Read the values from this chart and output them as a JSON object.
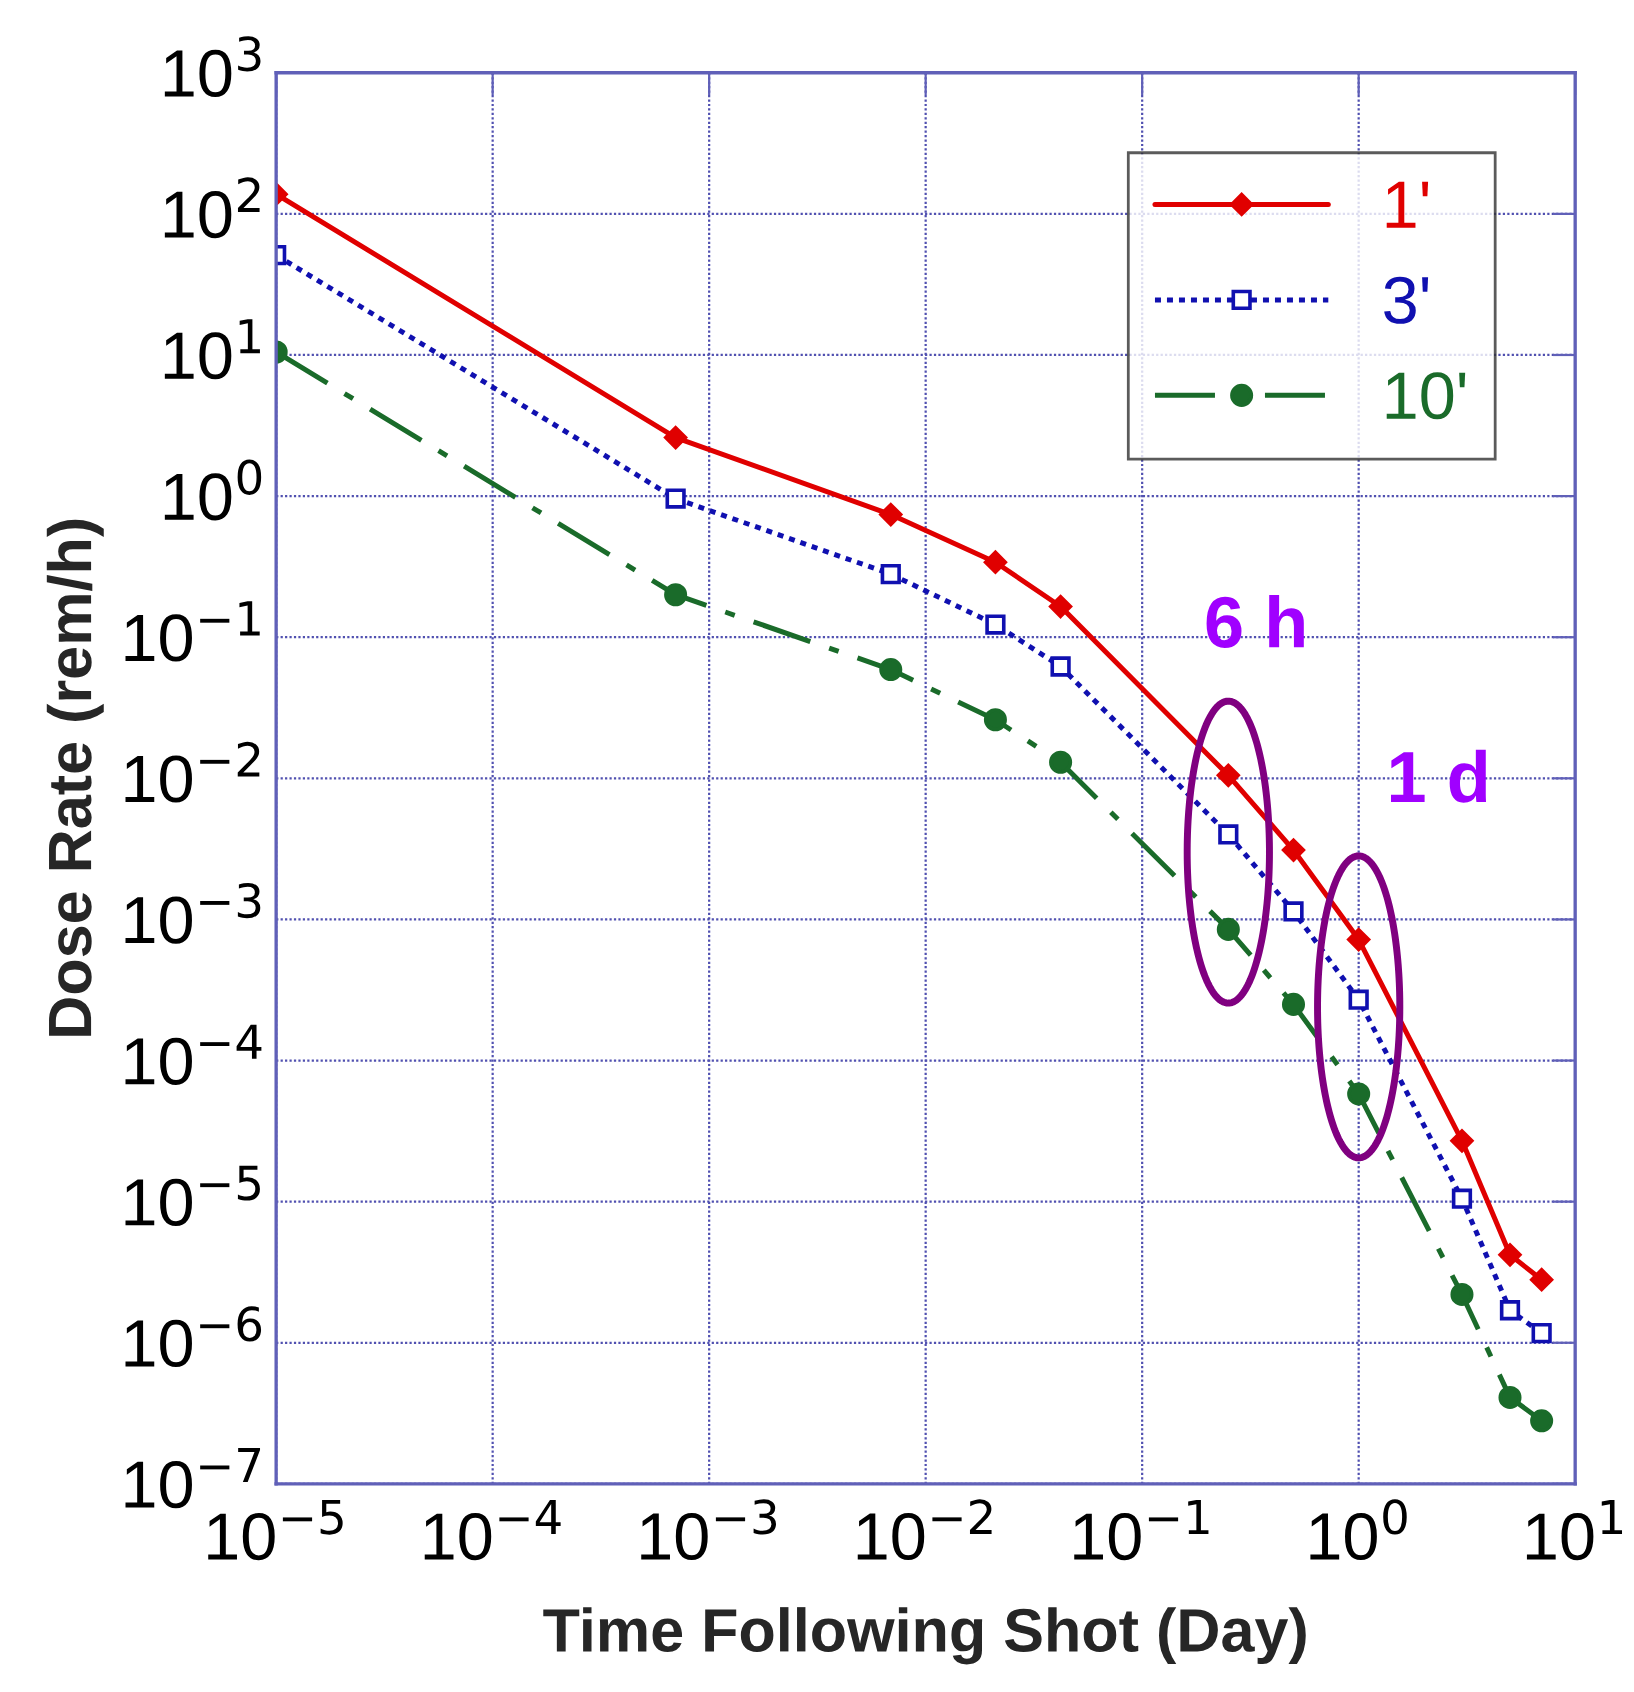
{
  "chart_data": {
    "type": "line",
    "xlabel": "Time Following Shot (Day)",
    "ylabel": "Dose Rate (rem/h)",
    "log": "xy",
    "grid": true,
    "legend": "top right",
    "x": [
      1e-05,
      0.0007,
      0.0069,
      0.021,
      0.042,
      0.25,
      0.5,
      1,
      3,
      5,
      7
    ],
    "xlim": [
      1e-05,
      10
    ],
    "ylim": [
      1e-07,
      1000
    ],
    "xticks": [
      {
        "value": 1e-05,
        "label": "10$^{−5}$"
      },
      {
        "value": 0.0001,
        "label": "10$^{−4}$"
      },
      {
        "value": 0.001,
        "label": "10$^{−3}$"
      },
      {
        "value": 0.01,
        "label": "10$^{−2}$"
      },
      {
        "value": 0.1,
        "label": "10$^{−1}$"
      },
      {
        "value": 1,
        "label": "10$^{0}$"
      },
      {
        "value": 10,
        "label": "10$^{1}$"
      }
    ],
    "yticks": [
      {
        "value": 1e-07,
        "label": "10$^{−7}$"
      },
      {
        "value": 1e-06,
        "label": "10$^{−6}$"
      },
      {
        "value": 1e-05,
        "label": "10$^{−5}$"
      },
      {
        "value": 0.0001,
        "label": "10$^{−4}$"
      },
      {
        "value": 0.001,
        "label": "10$^{−3}$"
      },
      {
        "value": 0.01,
        "label": "10$^{−2}$"
      },
      {
        "value": 0.1,
        "label": "10$^{−1}$"
      },
      {
        "value": 1,
        "label": "10$^{0}$"
      },
      {
        "value": 10,
        "label": "10$^{1}$"
      },
      {
        "value": 100,
        "label": "10$^{2}$"
      },
      {
        "value": 1000,
        "label": "10$^{3}$"
      }
    ],
    "series": [
      {
        "name": "1'",
        "color": "#e00000",
        "marker": "diamond",
        "line_style": "solid",
        "values": [
          138,
          2.6,
          0.74,
          0.34,
          0.165,
          0.0105,
          0.0031,
          0.00072,
          2.7e-05,
          4.2e-06,
          2.8e-06
        ]
      },
      {
        "name": "3'",
        "color": "#1010b0",
        "marker": "square",
        "line_style": "dotted",
        "values": [
          51,
          0.96,
          0.28,
          0.123,
          0.062,
          0.004,
          0.00114,
          0.00027,
          1.05e-05,
          1.7e-06,
          1.17e-06
        ]
      },
      {
        "name": "10'",
        "color": "#1a6b2a",
        "marker": "circle",
        "line_style": "dashed",
        "values": [
          10.5,
          0.2,
          0.059,
          0.026,
          0.013,
          0.00085,
          0.00025,
          5.8e-05,
          2.2e-06,
          4.1e-07,
          2.8e-07
        ]
      }
    ],
    "annotations": [
      {
        "text": "6 h",
        "x": 0.25,
        "y": 0.003
      },
      {
        "text": "1 d",
        "x": 1,
        "y": 0.00024
      }
    ]
  }
}
